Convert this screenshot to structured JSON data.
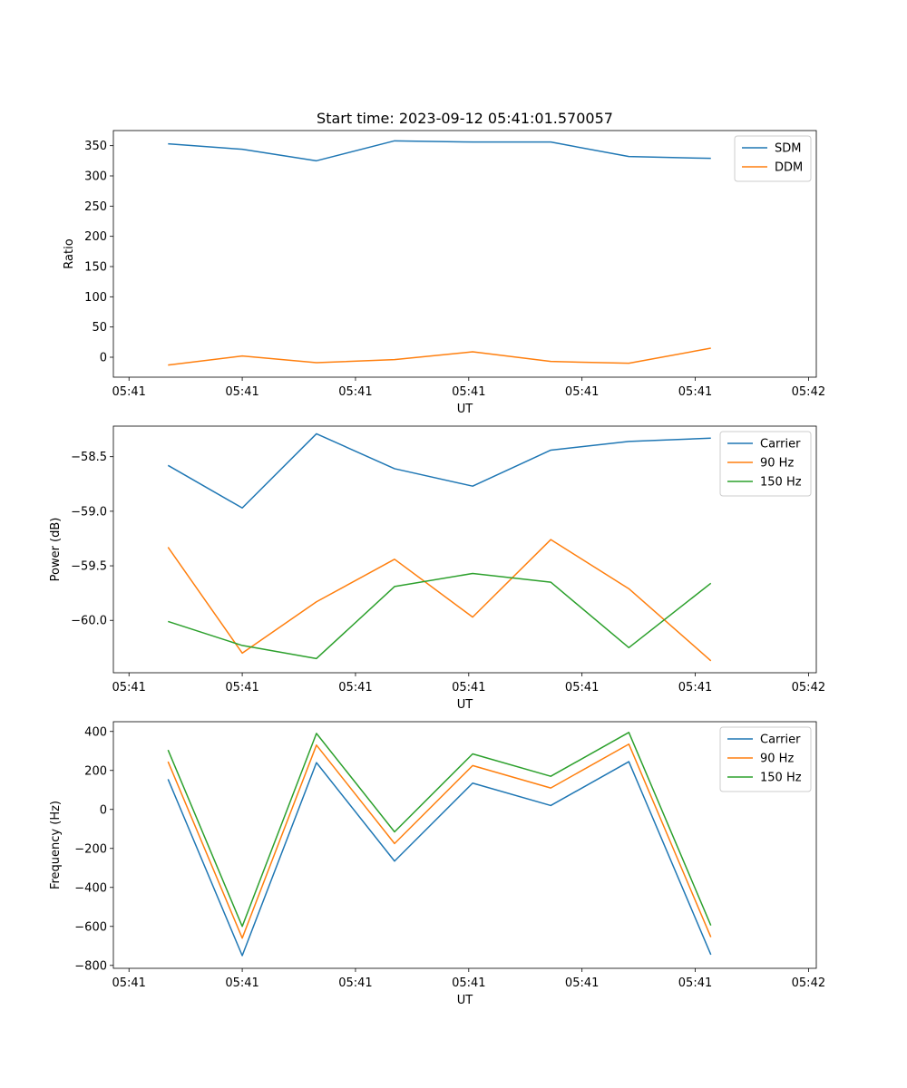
{
  "figure": {
    "title": "Start time: 2023-09-12 05:41:01.570057"
  },
  "chart_data": [
    {
      "type": "line",
      "id": "ratio",
      "xlabel": "UT",
      "ylabel": "Ratio",
      "xlim": [
        -0.3,
        8.7
      ],
      "x": [
        0.4,
        1.35,
        2.3,
        3.3,
        4.3,
        5.3,
        6.3,
        7.35
      ],
      "x_ticks": [
        {
          "x": -0.1,
          "label": "05:41"
        },
        {
          "x": 1.35,
          "label": "05:41"
        },
        {
          "x": 2.8,
          "label": "05:41"
        },
        {
          "x": 4.25,
          "label": "05:41"
        },
        {
          "x": 5.7,
          "label": "05:41"
        },
        {
          "x": 7.15,
          "label": "05:41"
        },
        {
          "x": 8.6,
          "label": "05:42"
        }
      ],
      "ylim": [
        -33,
        375
      ],
      "y_ticks": [
        {
          "v": 0,
          "label": "0"
        },
        {
          "v": 50,
          "label": "50"
        },
        {
          "v": 100,
          "label": "100"
        },
        {
          "v": 150,
          "label": "150"
        },
        {
          "v": 200,
          "label": "200"
        },
        {
          "v": 250,
          "label": "250"
        },
        {
          "v": 300,
          "label": "300"
        },
        {
          "v": 350,
          "label": "350"
        }
      ],
      "legend_position": "top-right",
      "series": [
        {
          "name": "SDM",
          "color": "#1f77b4",
          "values": [
            353,
            344,
            325,
            358,
            356,
            356,
            332,
            329
          ]
        },
        {
          "name": "DDM",
          "color": "#ff7f0e",
          "values": [
            -13,
            2,
            -9,
            -4,
            9,
            -7,
            -10,
            15
          ]
        }
      ]
    },
    {
      "type": "line",
      "id": "power",
      "xlabel": "UT",
      "ylabel": "Power (dB)",
      "xlim": [
        -0.3,
        8.7
      ],
      "x": [
        0.4,
        1.35,
        2.3,
        3.3,
        4.3,
        5.3,
        6.3,
        7.35
      ],
      "x_ticks": [
        {
          "x": -0.1,
          "label": "05:41"
        },
        {
          "x": 1.35,
          "label": "05:41"
        },
        {
          "x": 2.8,
          "label": "05:41"
        },
        {
          "x": 4.25,
          "label": "05:41"
        },
        {
          "x": 5.7,
          "label": "05:41"
        },
        {
          "x": 7.15,
          "label": "05:41"
        },
        {
          "x": 8.6,
          "label": "05:42"
        }
      ],
      "ylim": [
        -60.48,
        -58.22
      ],
      "y_ticks": [
        {
          "v": -60.0,
          "label": "−60.0"
        },
        {
          "v": -59.5,
          "label": "−59.5"
        },
        {
          "v": -59.0,
          "label": "−59.0"
        },
        {
          "v": -58.5,
          "label": "−58.5"
        }
      ],
      "legend_position": "top-right",
      "series": [
        {
          "name": "Carrier",
          "color": "#1f77b4",
          "values": [
            -58.58,
            -58.97,
            -58.29,
            -58.61,
            -58.77,
            -58.44,
            -58.36,
            -58.33
          ]
        },
        {
          "name": "90 Hz",
          "color": "#ff7f0e",
          "values": [
            -59.33,
            -60.3,
            -59.83,
            -59.44,
            -59.97,
            -59.26,
            -59.71,
            -60.37
          ]
        },
        {
          "name": "150 Hz",
          "color": "#2ca02c",
          "values": [
            -60.01,
            -60.23,
            -60.35,
            -59.69,
            -59.57,
            -59.65,
            -60.25,
            -59.66
          ]
        }
      ]
    },
    {
      "type": "line",
      "id": "frequency",
      "xlabel": "UT",
      "ylabel": "Frequency (Hz)",
      "xlim": [
        -0.3,
        8.7
      ],
      "x": [
        0.4,
        1.35,
        2.3,
        3.3,
        4.3,
        5.3,
        6.3,
        7.35
      ],
      "x_ticks": [
        {
          "x": -0.1,
          "label": "05:41"
        },
        {
          "x": 1.35,
          "label": "05:41"
        },
        {
          "x": 2.8,
          "label": "05:41"
        },
        {
          "x": 4.25,
          "label": "05:41"
        },
        {
          "x": 5.7,
          "label": "05:41"
        },
        {
          "x": 7.15,
          "label": "05:41"
        },
        {
          "x": 8.6,
          "label": "05:42"
        }
      ],
      "ylim": [
        -815,
        450
      ],
      "y_ticks": [
        {
          "v": -800,
          "label": "−800"
        },
        {
          "v": -600,
          "label": "−600"
        },
        {
          "v": -400,
          "label": "−400"
        },
        {
          "v": -200,
          "label": "−200"
        },
        {
          "v": 0,
          "label": "0"
        },
        {
          "v": 200,
          "label": "200"
        },
        {
          "v": 400,
          "label": "400"
        }
      ],
      "legend_position": "top-right",
      "series": [
        {
          "name": "Carrier",
          "color": "#1f77b4",
          "values": [
            155,
            -750,
            240,
            -265,
            135,
            20,
            245,
            -745
          ]
        },
        {
          "name": "90 Hz",
          "color": "#ff7f0e",
          "values": [
            245,
            -660,
            330,
            -175,
            225,
            110,
            335,
            -655
          ]
        },
        {
          "name": "150 Hz",
          "color": "#2ca02c",
          "values": [
            305,
            -600,
            390,
            -115,
            285,
            170,
            395,
            -595
          ]
        }
      ]
    }
  ]
}
